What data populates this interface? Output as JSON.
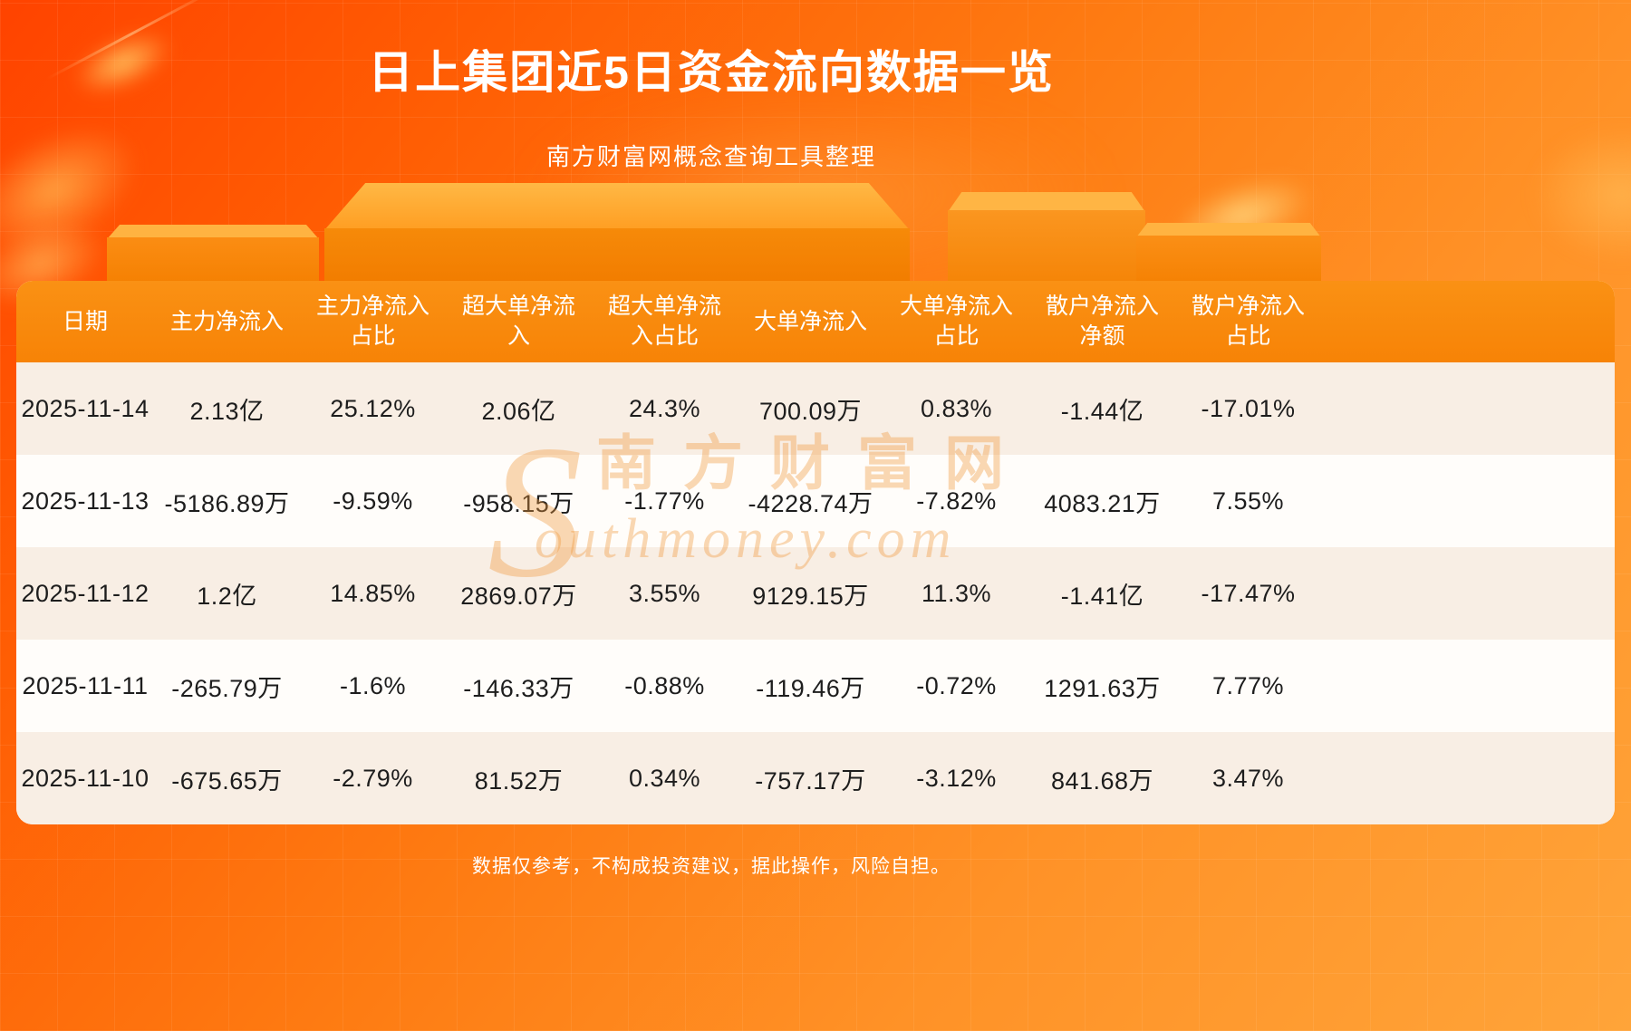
{
  "page": {
    "title": "日上集团近5日资金流向数据一览",
    "subtitle": "南方财富网概念查询工具整理",
    "disclaimer": "数据仅参考，不构成投资建议，据此操作，风险自担。"
  },
  "watermark": {
    "initial": "S",
    "cn": "南方财富网",
    "en_rest": "outhmoney.com"
  },
  "colors": {
    "background_top": "#ff4300",
    "background_bottom": "#ffa439",
    "table_header_bg": "#f8860b",
    "row_odd": "#f8eee4",
    "row_even": "#fffdfa",
    "text_dark": "#1d1d1d",
    "text_white": "#ffffff"
  },
  "table": {
    "display_headers": [
      "日期",
      "主力净流入",
      "主力净流入\n占比",
      "超大单净流\n入",
      "超大单净流\n入占比",
      "大单净流入",
      "大单净流入\n占比",
      "散户净流入\n净额",
      "散户净流入\n占比"
    ]
  },
  "chart_data": {
    "type": "table",
    "title": "日上集团近5日资金流向数据一览",
    "columns": [
      "日期",
      "主力净流入",
      "主力净流入占比",
      "超大单净流入",
      "超大单净流入占比",
      "大单净流入",
      "大单净流入占比",
      "散户净流入净额",
      "散户净流入占比"
    ],
    "rows": [
      [
        "2025-11-14",
        "2.13亿",
        "25.12%",
        "2.06亿",
        "24.3%",
        "700.09万",
        "0.83%",
        "-1.44亿",
        "-17.01%"
      ],
      [
        "2025-11-13",
        "-5186.89万",
        "-9.59%",
        "-958.15万",
        "-1.77%",
        "-4228.74万",
        "-7.82%",
        "4083.21万",
        "7.55%"
      ],
      [
        "2025-11-12",
        "1.2亿",
        "14.85%",
        "2869.07万",
        "3.55%",
        "9129.15万",
        "11.3%",
        "-1.41亿",
        "-17.47%"
      ],
      [
        "2025-11-11",
        "-265.79万",
        "-1.6%",
        "-146.33万",
        "-0.88%",
        "-119.46万",
        "-0.72%",
        "1291.63万",
        "7.77%"
      ],
      [
        "2025-11-10",
        "-675.65万",
        "-2.79%",
        "81.52万",
        "0.34%",
        "-757.17万",
        "-3.12%",
        "841.68万",
        "3.47%"
      ]
    ]
  }
}
